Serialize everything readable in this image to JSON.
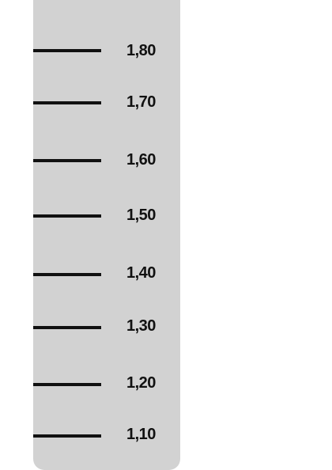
{
  "ruler": {
    "marks": [
      {
        "label": "1,80",
        "value": 1.8
      },
      {
        "label": "1,70",
        "value": 1.7
      },
      {
        "label": "1,60",
        "value": 1.6
      },
      {
        "label": "1,50",
        "value": 1.5
      },
      {
        "label": "1,40",
        "value": 1.4
      },
      {
        "label": "1,30",
        "value": 1.3
      },
      {
        "label": "1,20",
        "value": 1.2
      },
      {
        "label": "1,10",
        "value": 1.1
      }
    ],
    "colors": {
      "panel": "#d2d2d2",
      "tick": "#111111",
      "background": "#ffffff"
    }
  }
}
